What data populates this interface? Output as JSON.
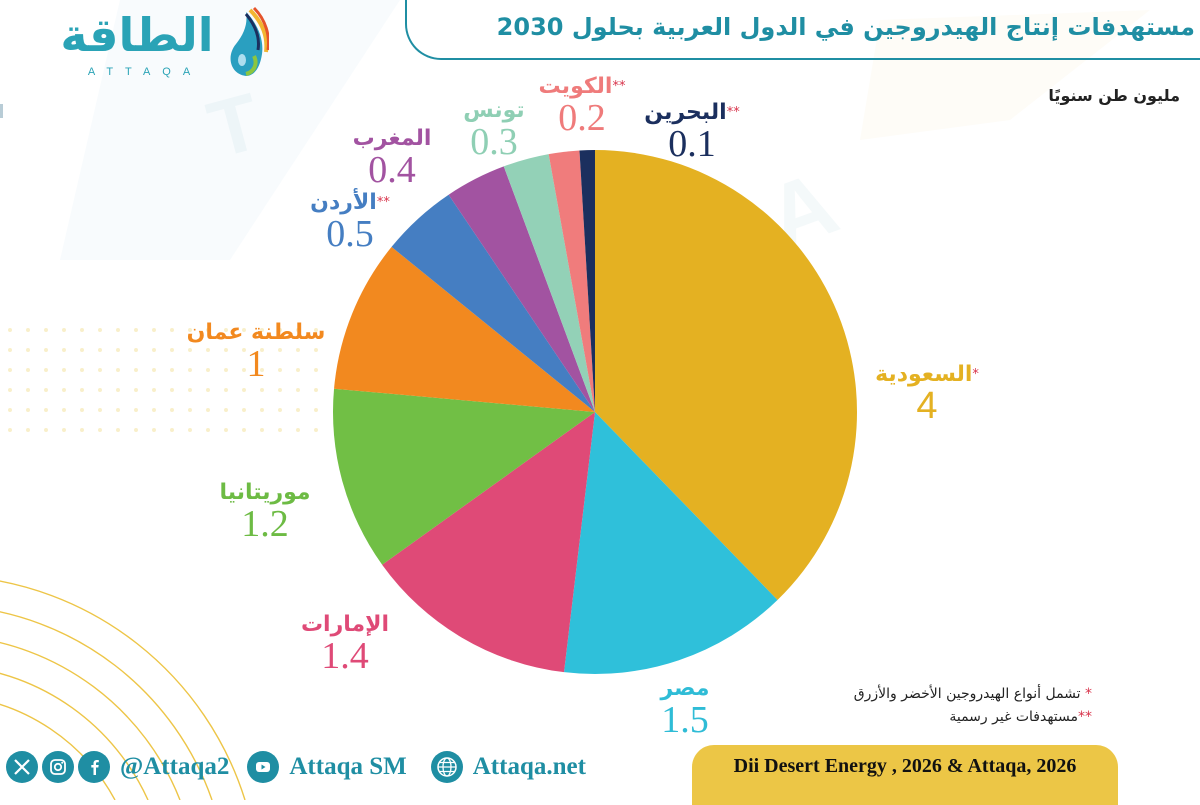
{
  "header": {
    "title": "مستهدفات إنتاج الهيدروجين في الدول العربية بحلول 2030",
    "unit": "مليون طن سنويًا",
    "title_color": "#1f8ea3"
  },
  "logo": {
    "arabic": "الطاقة",
    "latin": "ATTAQA",
    "icon": "water-drop-flame-icon",
    "color": "#2aa3b6"
  },
  "chart_data": {
    "type": "pie",
    "title": "مستهدفات إنتاج الهيدروجين في الدول العربية بحلول 2030",
    "subtitle": "مليون طن سنويًا",
    "unit": "million tonnes per year",
    "start_angle": "12 o'clock",
    "direction": "clockwise",
    "legend_position": "labels around pie",
    "slices": [
      {
        "label": "السعودية",
        "marker": "*",
        "value": 4,
        "color": "#e4b122",
        "label_color": "#e4b122"
      },
      {
        "label": "مصر",
        "marker": "",
        "value": 1.5,
        "color": "#2fc0da",
        "label_color": "#2fbcd6"
      },
      {
        "label": "الإمارات",
        "marker": "",
        "value": 1.4,
        "color": "#df4a77",
        "label_color": "#df4a77"
      },
      {
        "label": "موريتانيا",
        "marker": "",
        "value": 1.2,
        "color": "#71bf45",
        "label_color": "#6dbb44"
      },
      {
        "label": "سلطنة عمان",
        "marker": "",
        "value": 1,
        "color": "#f2891f",
        "label_color": "#f2891f"
      },
      {
        "label": "الأردن",
        "marker": "**",
        "value": 0.5,
        "color": "#457ec2",
        "label_color": "#457ec2"
      },
      {
        "label": "المغرب",
        "marker": "",
        "value": 0.4,
        "color": "#a253a1",
        "label_color": "#a253a1"
      },
      {
        "label": "تونس",
        "marker": "",
        "value": 0.3,
        "color": "#93d1b7",
        "label_color": "#8fcfb4"
      },
      {
        "label": "الكويت",
        "marker": "**",
        "value": 0.2,
        "color": "#f07c7c",
        "label_color": "#ef7b7b"
      },
      {
        "label": "البحرين",
        "marker": "**",
        "value": 0.1,
        "color": "#1b2f5e",
        "label_color": "#1b2f5e"
      }
    ],
    "center": [
      595,
      412
    ],
    "radius": 262
  },
  "notes": [
    {
      "marker": "*",
      "text": "تشمل أنواع الهيدروجين الأخضر والأزرق"
    },
    {
      "marker": "**",
      "text": "مستهدفات غير رسمية"
    }
  ],
  "footer": {
    "social_icons": [
      "x-icon",
      "instagram-icon",
      "facebook-icon"
    ],
    "handle": "@Attaqa2",
    "youtube": "Attaqa SM",
    "website": "Attaqa.net",
    "source": "Dii Desert Energy , 2026 & Attaqa, 2026",
    "source_bg": "#ecc646"
  }
}
